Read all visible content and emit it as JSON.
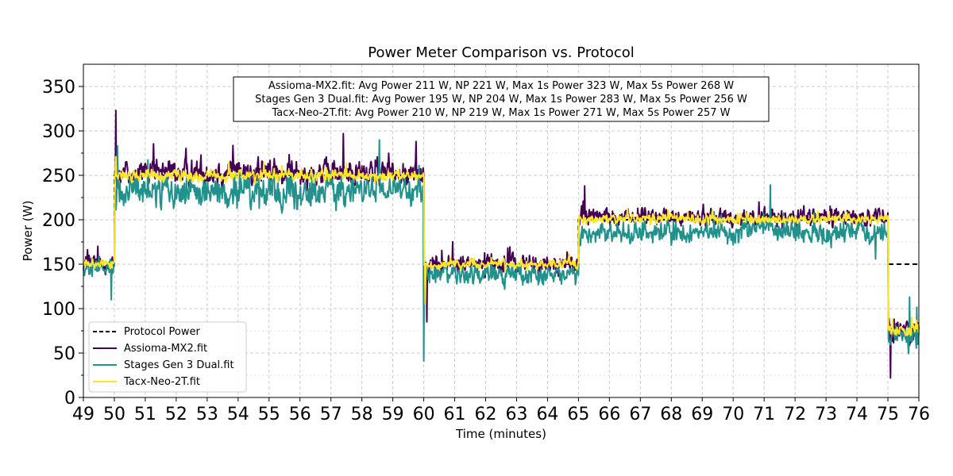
{
  "chart_data": {
    "type": "line",
    "title": "Power Meter Comparison vs. Protocol",
    "xlabel": "Time (minutes)",
    "ylabel": "Power (W)",
    "xlim": [
      49,
      76
    ],
    "ylim": [
      0,
      375
    ],
    "xticks": [
      49,
      50,
      51,
      52,
      53,
      54,
      55,
      56,
      57,
      58,
      59,
      60,
      61,
      62,
      63,
      64,
      65,
      66,
      67,
      68,
      69,
      70,
      71,
      72,
      73,
      74,
      75,
      76
    ],
    "yticks": [
      0,
      50,
      100,
      150,
      200,
      250,
      300,
      350
    ],
    "grid": true,
    "legend_position": "lower-left",
    "stats_box": [
      "Assioma-MX2.fit: Avg Power 211 W, NP 221 W, Max 1s Power 323 W, Max 5s Power 268 W",
      "Stages Gen 3 Dual.fit: Avg Power 195 W, NP 204 W, Max 1s Power 283 W, Max 5s Power 256 W",
      "Tacx-Neo-2T.fit: Avg Power 210 W, NP 219 W, Max 1s Power 271 W, Max 5s Power 257 W"
    ],
    "protocol": {
      "name": "Protocol Power",
      "color": "#000000",
      "steps": [
        {
          "start": 49,
          "end": 50,
          "power": 150
        },
        {
          "start": 50,
          "end": 60,
          "power": 250
        },
        {
          "start": 60,
          "end": 65,
          "power": 150
        },
        {
          "start": 65,
          "end": 75,
          "power": 200
        },
        {
          "start": 75,
          "end": 76,
          "power": 150
        }
      ]
    },
    "series": [
      {
        "name": "Assioma-MX2.fit",
        "color": "#440154",
        "segments": [
          {
            "start": 49,
            "end": 50,
            "level": 152,
            "noise": 8
          },
          {
            "start": 50,
            "end": 60,
            "level": 253,
            "noise": 12
          },
          {
            "start": 60,
            "end": 65,
            "level": 150,
            "noise": 9
          },
          {
            "start": 65,
            "end": 75,
            "level": 203,
            "noise": 8
          },
          {
            "start": 75,
            "end": 76,
            "level": 75,
            "noise": 10
          }
        ],
        "spikes": [
          [
            50.05,
            323
          ],
          [
            57.4,
            297
          ],
          [
            59.75,
            288
          ],
          [
            60.1,
            85
          ],
          [
            65.2,
            238
          ],
          [
            75.08,
            22
          ]
        ]
      },
      {
        "name": "Stages Gen 3 Dual.fit",
        "color": "#21918c",
        "segments": [
          {
            "start": 49,
            "end": 50,
            "level": 145,
            "noise": 7
          },
          {
            "start": 50,
            "end": 60,
            "level": 233,
            "noise": 14
          },
          {
            "start": 60,
            "end": 65,
            "level": 138,
            "noise": 9
          },
          {
            "start": 65,
            "end": 75,
            "level": 186,
            "noise": 10
          },
          {
            "start": 75,
            "end": 76,
            "level": 70,
            "noise": 11
          }
        ],
        "spikes": [
          [
            49.9,
            110
          ],
          [
            50.1,
            283
          ],
          [
            60.0,
            41
          ],
          [
            71.2,
            239
          ],
          [
            74.6,
            156
          ],
          [
            75.7,
            113
          ]
        ]
      },
      {
        "name": "Tacx-Neo-2T.fit",
        "color": "#fde725",
        "segments": [
          {
            "start": 49,
            "end": 50,
            "level": 150,
            "noise": 4
          },
          {
            "start": 50,
            "end": 60,
            "level": 250,
            "noise": 5
          },
          {
            "start": 60,
            "end": 65,
            "level": 150,
            "noise": 4
          },
          {
            "start": 65,
            "end": 75,
            "level": 201,
            "noise": 4
          },
          {
            "start": 75,
            "end": 76,
            "level": 76,
            "noise": 6
          }
        ],
        "spikes": [
          [
            50.05,
            271
          ],
          [
            60.05,
            105
          ]
        ]
      }
    ]
  }
}
